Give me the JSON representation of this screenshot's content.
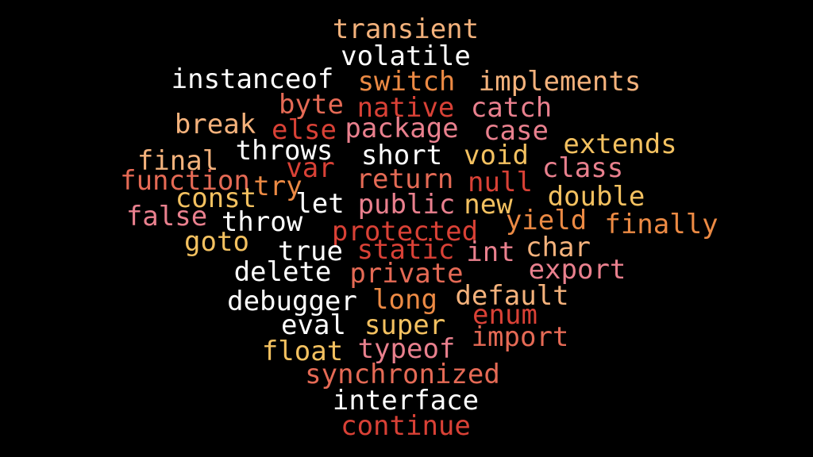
{
  "background": "#000000",
  "palette": {
    "white": "#ffffff",
    "peach": "#f4b27c",
    "gold": "#f3c160",
    "orange": "#ec8a44",
    "coral": "#e56a55",
    "red": "#d94136",
    "pink": "#e9808e"
  },
  "words": [
    {
      "text": "transient",
      "color": "peach"
    },
    {
      "text": "volatile",
      "color": "white"
    },
    {
      "text": "instanceof",
      "color": "white"
    },
    {
      "text": "switch",
      "color": "orange"
    },
    {
      "text": "implements",
      "color": "peach"
    },
    {
      "text": "byte",
      "color": "coral"
    },
    {
      "text": "native",
      "color": "red"
    },
    {
      "text": "catch",
      "color": "pink"
    },
    {
      "text": "break",
      "color": "peach"
    },
    {
      "text": "else",
      "color": "red"
    },
    {
      "text": "package",
      "color": "pink"
    },
    {
      "text": "case",
      "color": "pink"
    },
    {
      "text": "extends",
      "color": "gold"
    },
    {
      "text": "final",
      "color": "peach"
    },
    {
      "text": "throws",
      "color": "white"
    },
    {
      "text": "short",
      "color": "white"
    },
    {
      "text": "void",
      "color": "gold"
    },
    {
      "text": "function",
      "color": "coral"
    },
    {
      "text": "var",
      "color": "red"
    },
    {
      "text": "return",
      "color": "coral"
    },
    {
      "text": "class",
      "color": "pink"
    },
    {
      "text": "try",
      "color": "orange"
    },
    {
      "text": "null",
      "color": "red"
    },
    {
      "text": "const",
      "color": "gold"
    },
    {
      "text": "let",
      "color": "white"
    },
    {
      "text": "double",
      "color": "gold"
    },
    {
      "text": "false",
      "color": "pink"
    },
    {
      "text": "throw",
      "color": "white"
    },
    {
      "text": "public",
      "color": "pink"
    },
    {
      "text": "new",
      "color": "gold"
    },
    {
      "text": "yield",
      "color": "orange"
    },
    {
      "text": "finally",
      "color": "orange"
    },
    {
      "text": "protected",
      "color": "red"
    },
    {
      "text": "goto",
      "color": "gold"
    },
    {
      "text": "true",
      "color": "white"
    },
    {
      "text": "static",
      "color": "red"
    },
    {
      "text": "int",
      "color": "pink"
    },
    {
      "text": "char",
      "color": "peach"
    },
    {
      "text": "export",
      "color": "pink"
    },
    {
      "text": "delete",
      "color": "white"
    },
    {
      "text": "private",
      "color": "coral"
    },
    {
      "text": "debugger",
      "color": "white"
    },
    {
      "text": "long",
      "color": "orange"
    },
    {
      "text": "default",
      "color": "peach"
    },
    {
      "text": "enum",
      "color": "red"
    },
    {
      "text": "eval",
      "color": "white"
    },
    {
      "text": "super",
      "color": "gold"
    },
    {
      "text": "import",
      "color": "coral"
    },
    {
      "text": "float",
      "color": "gold"
    },
    {
      "text": "typeof",
      "color": "pink"
    },
    {
      "text": "synchronized",
      "color": "coral"
    },
    {
      "text": "interface",
      "color": "white"
    },
    {
      "text": "continue",
      "color": "red"
    }
  ]
}
